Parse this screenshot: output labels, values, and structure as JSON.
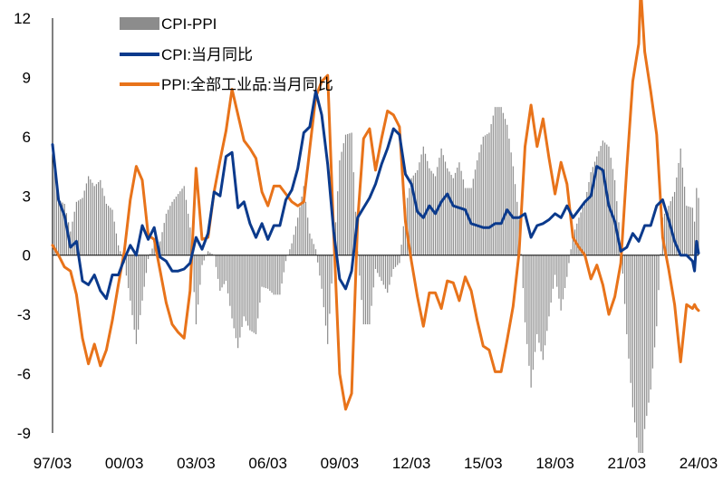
{
  "chart_data": {
    "type": "bar+line",
    "title": "",
    "xlabel": "",
    "ylabel": "",
    "ylim": [
      -9,
      12
    ],
    "yticks": [
      "12",
      "9",
      "6",
      "3",
      "0",
      "-3",
      "-6",
      "-9"
    ],
    "xticks": [
      "97/03",
      "00/03",
      "03/03",
      "06/03",
      "09/03",
      "12/03",
      "15/03",
      "18/03",
      "21/03",
      "24/03"
    ],
    "x_start": "1997-03",
    "x_end": "2024-03",
    "legend_position": "top-left",
    "series": [
      {
        "name": "CPI:当月同比",
        "type": "line",
        "color": "#0b3a8c",
        "points": [
          [
            "1997-03",
            5.6
          ],
          [
            "1997-06",
            2.8
          ],
          [
            "1997-09",
            2.0
          ],
          [
            "1997-12",
            0.4
          ],
          [
            "1998-03",
            0.7
          ],
          [
            "1998-06",
            -1.3
          ],
          [
            "1998-09",
            -1.5
          ],
          [
            "1998-12",
            -1.0
          ],
          [
            "1999-03",
            -1.8
          ],
          [
            "1999-06",
            -2.2
          ],
          [
            "1999-09",
            -1.0
          ],
          [
            "1999-12",
            -1.0
          ],
          [
            "2000-03",
            -0.2
          ],
          [
            "2000-06",
            0.5
          ],
          [
            "2000-09",
            0.0
          ],
          [
            "2000-12",
            1.5
          ],
          [
            "2001-03",
            0.8
          ],
          [
            "2001-06",
            1.4
          ],
          [
            "2001-09",
            -0.1
          ],
          [
            "2001-12",
            -0.3
          ],
          [
            "2002-03",
            -0.8
          ],
          [
            "2002-06",
            -0.8
          ],
          [
            "2002-09",
            -0.7
          ],
          [
            "2002-12",
            -0.4
          ],
          [
            "2003-03",
            0.9
          ],
          [
            "2003-06",
            0.3
          ],
          [
            "2003-09",
            1.1
          ],
          [
            "2003-12",
            3.2
          ],
          [
            "2004-03",
            3.0
          ],
          [
            "2004-06",
            5.0
          ],
          [
            "2004-09",
            5.2
          ],
          [
            "2004-12",
            2.4
          ],
          [
            "2005-03",
            2.7
          ],
          [
            "2005-06",
            1.6
          ],
          [
            "2005-09",
            0.9
          ],
          [
            "2005-12",
            1.6
          ],
          [
            "2006-03",
            0.8
          ],
          [
            "2006-06",
            1.5
          ],
          [
            "2006-09",
            1.5
          ],
          [
            "2006-12",
            2.8
          ],
          [
            "2007-03",
            3.3
          ],
          [
            "2007-06",
            4.4
          ],
          [
            "2007-09",
            6.2
          ],
          [
            "2007-12",
            6.5
          ],
          [
            "2008-03",
            8.3
          ],
          [
            "2008-06",
            7.1
          ],
          [
            "2008-09",
            4.6
          ],
          [
            "2008-12",
            1.2
          ],
          [
            "2009-03",
            -1.2
          ],
          [
            "2009-06",
            -1.7
          ],
          [
            "2009-09",
            -0.8
          ],
          [
            "2009-12",
            1.9
          ],
          [
            "2010-03",
            2.4
          ],
          [
            "2010-06",
            2.9
          ],
          [
            "2010-09",
            3.6
          ],
          [
            "2010-12",
            4.6
          ],
          [
            "2011-03",
            5.4
          ],
          [
            "2011-06",
            6.4
          ],
          [
            "2011-09",
            6.1
          ],
          [
            "2011-12",
            4.1
          ],
          [
            "2012-03",
            3.6
          ],
          [
            "2012-06",
            2.2
          ],
          [
            "2012-09",
            1.9
          ],
          [
            "2012-12",
            2.5
          ],
          [
            "2013-03",
            2.1
          ],
          [
            "2013-06",
            2.7
          ],
          [
            "2013-09",
            3.1
          ],
          [
            "2013-12",
            2.5
          ],
          [
            "2014-03",
            2.4
          ],
          [
            "2014-06",
            2.3
          ],
          [
            "2014-09",
            1.6
          ],
          [
            "2014-12",
            1.5
          ],
          [
            "2015-03",
            1.4
          ],
          [
            "2015-06",
            1.4
          ],
          [
            "2015-09",
            1.6
          ],
          [
            "2015-12",
            1.6
          ],
          [
            "2016-03",
            2.3
          ],
          [
            "2016-06",
            1.9
          ],
          [
            "2016-09",
            1.9
          ],
          [
            "2016-12",
            2.1
          ],
          [
            "2017-03",
            0.9
          ],
          [
            "2017-06",
            1.5
          ],
          [
            "2017-09",
            1.6
          ],
          [
            "2017-12",
            1.8
          ],
          [
            "2018-03",
            2.1
          ],
          [
            "2018-06",
            1.9
          ],
          [
            "2018-09",
            2.5
          ],
          [
            "2018-12",
            1.9
          ],
          [
            "2019-03",
            2.3
          ],
          [
            "2019-06",
            2.7
          ],
          [
            "2019-09",
            3.0
          ],
          [
            "2019-12",
            4.5
          ],
          [
            "2020-03",
            4.3
          ],
          [
            "2020-06",
            2.5
          ],
          [
            "2020-09",
            1.7
          ],
          [
            "2020-12",
            0.2
          ],
          [
            "2021-03",
            0.4
          ],
          [
            "2021-06",
            1.1
          ],
          [
            "2021-09",
            0.7
          ],
          [
            "2021-12",
            1.5
          ],
          [
            "2022-03",
            1.5
          ],
          [
            "2022-06",
            2.5
          ],
          [
            "2022-09",
            2.8
          ],
          [
            "2022-12",
            1.8
          ],
          [
            "2023-03",
            0.7
          ],
          [
            "2023-06",
            0.0
          ],
          [
            "2023-09",
            0.0
          ],
          [
            "2023-12",
            -0.3
          ],
          [
            "2024-01",
            -0.8
          ],
          [
            "2024-02",
            0.7
          ],
          [
            "2024-03",
            0.1
          ]
        ]
      },
      {
        "name": "PPI:全部工业品:当月同比",
        "type": "line",
        "color": "#e8731a",
        "points": [
          [
            "1997-03",
            0.5
          ],
          [
            "1997-06",
            0.0
          ],
          [
            "1997-09",
            -0.6
          ],
          [
            "1997-12",
            -0.8
          ],
          [
            "1998-03",
            -2.0
          ],
          [
            "1998-06",
            -4.2
          ],
          [
            "1998-09",
            -5.5
          ],
          [
            "1998-12",
            -4.5
          ],
          [
            "1999-03",
            -5.6
          ],
          [
            "1999-06",
            -4.8
          ],
          [
            "1999-09",
            -3.3
          ],
          [
            "1999-12",
            -1.5
          ],
          [
            "2000-03",
            0.2
          ],
          [
            "2000-06",
            2.8
          ],
          [
            "2000-09",
            4.5
          ],
          [
            "2000-12",
            3.8
          ],
          [
            "2001-03",
            1.0
          ],
          [
            "2001-06",
            0.8
          ],
          [
            "2001-09",
            -0.8
          ],
          [
            "2001-12",
            -2.4
          ],
          [
            "2002-03",
            -3.5
          ],
          [
            "2002-06",
            -3.9
          ],
          [
            "2002-09",
            -4.2
          ],
          [
            "2002-12",
            -1.8
          ],
          [
            "2003-03",
            4.4
          ],
          [
            "2003-06",
            0.8
          ],
          [
            "2003-09",
            0.9
          ],
          [
            "2003-12",
            3.2
          ],
          [
            "2004-03",
            4.8
          ],
          [
            "2004-06",
            6.3
          ],
          [
            "2004-09",
            8.4
          ],
          [
            "2004-12",
            7.1
          ],
          [
            "2005-03",
            5.8
          ],
          [
            "2005-06",
            5.4
          ],
          [
            "2005-09",
            4.9
          ],
          [
            "2005-12",
            3.2
          ],
          [
            "2006-03",
            2.5
          ],
          [
            "2006-06",
            3.5
          ],
          [
            "2006-09",
            3.5
          ],
          [
            "2006-12",
            3.1
          ],
          [
            "2007-03",
            2.7
          ],
          [
            "2007-06",
            2.5
          ],
          [
            "2007-09",
            2.7
          ],
          [
            "2007-12",
            5.4
          ],
          [
            "2008-03",
            8.0
          ],
          [
            "2008-06",
            8.8
          ],
          [
            "2008-09",
            9.1
          ],
          [
            "2008-12",
            1.1
          ],
          [
            "2009-03",
            -6.0
          ],
          [
            "2009-06",
            -7.8
          ],
          [
            "2009-09",
            -7.0
          ],
          [
            "2009-12",
            1.7
          ],
          [
            "2010-03",
            5.9
          ],
          [
            "2010-06",
            6.4
          ],
          [
            "2010-09",
            4.3
          ],
          [
            "2010-12",
            5.9
          ],
          [
            "2011-03",
            7.3
          ],
          [
            "2011-06",
            7.1
          ],
          [
            "2011-09",
            6.5
          ],
          [
            "2011-12",
            1.7
          ],
          [
            "2012-03",
            -0.3
          ],
          [
            "2012-06",
            -2.1
          ],
          [
            "2012-09",
            -3.6
          ],
          [
            "2012-12",
            -1.9
          ],
          [
            "2013-03",
            -1.9
          ],
          [
            "2013-06",
            -2.7
          ],
          [
            "2013-09",
            -1.3
          ],
          [
            "2013-12",
            -1.4
          ],
          [
            "2014-03",
            -2.3
          ],
          [
            "2014-06",
            -1.1
          ],
          [
            "2014-09",
            -1.8
          ],
          [
            "2014-12",
            -3.3
          ],
          [
            "2015-03",
            -4.6
          ],
          [
            "2015-06",
            -4.8
          ],
          [
            "2015-09",
            -5.9
          ],
          [
            "2015-12",
            -5.9
          ],
          [
            "2016-03",
            -4.3
          ],
          [
            "2016-06",
            -2.6
          ],
          [
            "2016-09",
            0.1
          ],
          [
            "2016-12",
            5.5
          ],
          [
            "2017-03",
            7.6
          ],
          [
            "2017-06",
            5.5
          ],
          [
            "2017-09",
            6.9
          ],
          [
            "2017-12",
            4.9
          ],
          [
            "2018-03",
            3.1
          ],
          [
            "2018-06",
            4.7
          ],
          [
            "2018-09",
            3.6
          ],
          [
            "2018-12",
            0.9
          ],
          [
            "2019-03",
            0.4
          ],
          [
            "2019-06",
            0.0
          ],
          [
            "2019-09",
            -1.2
          ],
          [
            "2019-12",
            -0.5
          ],
          [
            "2020-03",
            -1.5
          ],
          [
            "2020-06",
            -3.0
          ],
          [
            "2020-09",
            -2.1
          ],
          [
            "2020-12",
            -0.4
          ],
          [
            "2021-03",
            4.4
          ],
          [
            "2021-06",
            8.8
          ],
          [
            "2021-09",
            10.7
          ],
          [
            "2021-10",
            13.5
          ],
          [
            "2021-12",
            10.3
          ],
          [
            "2022-03",
            8.3
          ],
          [
            "2022-06",
            6.1
          ],
          [
            "2022-09",
            0.9
          ],
          [
            "2022-12",
            -0.7
          ],
          [
            "2023-03",
            -2.5
          ],
          [
            "2023-06",
            -5.4
          ],
          [
            "2023-09",
            -2.5
          ],
          [
            "2023-12",
            -2.7
          ],
          [
            "2024-01",
            -2.5
          ],
          [
            "2024-02",
            -2.7
          ],
          [
            "2024-03",
            -2.8
          ]
        ]
      },
      {
        "name": "CPI-PPI",
        "type": "bar",
        "color": "#8c8c8c",
        "derived_from": [
          "CPI:当月同比",
          "PPI:全部工业品:当月同比"
        ]
      }
    ],
    "legend": [
      {
        "label": "CPI-PPI",
        "style": "bar",
        "color": "#8c8c8c"
      },
      {
        "label": "CPI:当月同比",
        "style": "line",
        "color": "#0b3a8c"
      },
      {
        "label": "PPI:全部工业品:当月同比",
        "style": "line",
        "color": "#e8731a"
      }
    ]
  }
}
